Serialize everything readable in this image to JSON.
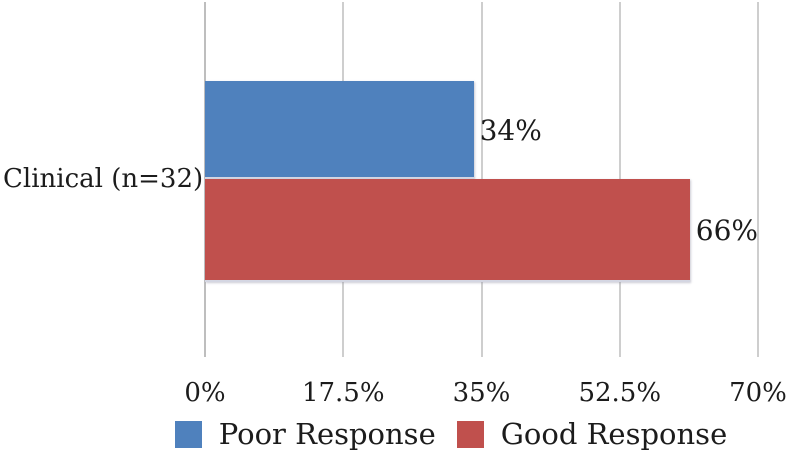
{
  "chart_data": {
    "type": "bar",
    "orientation": "horizontal",
    "title": "",
    "xlabel": "",
    "ylabel": "",
    "categories": [
      "Clinical (n=32)"
    ],
    "series": [
      {
        "name": "Poor Response",
        "color": "#4F81BD",
        "values": [
          34
        ],
        "data_labels": [
          "34%"
        ]
      },
      {
        "name": "Good Response",
        "color": "#C0504D",
        "values": [
          66
        ],
        "data_labels": [
          "66%"
        ]
      }
    ],
    "xlim": [
      0,
      70
    ],
    "x_tick_values": [
      0,
      17.5,
      35,
      52.5,
      70
    ],
    "x_tick_labels": [
      "0%",
      "17.5%",
      "35%",
      "52.5%",
      "70%"
    ],
    "grid": "vertical-gridlines-on",
    "legend_position": "bottom"
  },
  "colors": {
    "poor_response": "#4F81BD",
    "good_response": "#C0504D",
    "gridline": "#9e9e9e",
    "text": "#1c1c1c"
  }
}
